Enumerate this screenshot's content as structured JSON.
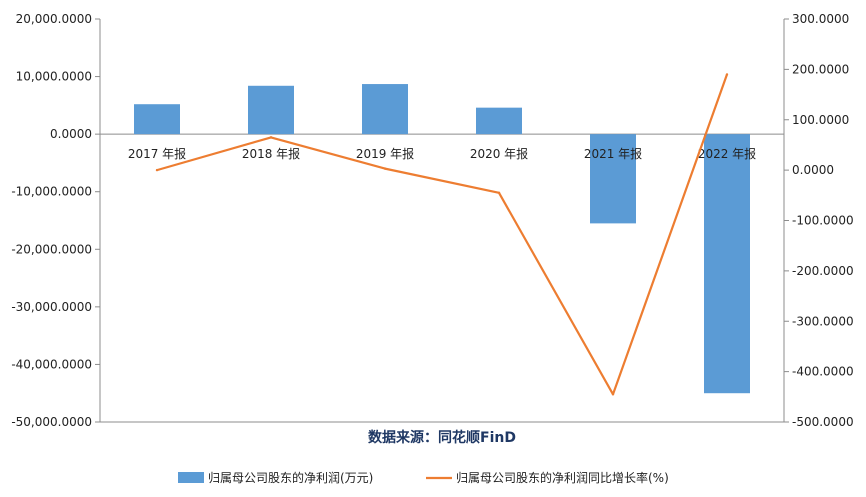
{
  "chart_data": {
    "type": "bar",
    "categories": [
      "2017 年报",
      "2018 年报",
      "2019 年报",
      "2020 年报",
      "2021 年报",
      "2022 年报"
    ],
    "series": [
      {
        "name": "归属母公司股东的净利润(万元)",
        "type": "bar",
        "axis": "left",
        "color": "#5b9bd5",
        "values": [
          5200,
          8400,
          8700,
          4600,
          -15500,
          -45000
        ]
      },
      {
        "name": "归属母公司股东的净利润同比增长率(%)",
        "type": "line",
        "axis": "right",
        "color": "#ed7d31",
        "values": [
          0,
          65,
          3,
          -45,
          -445,
          190
        ]
      }
    ],
    "y_left": {
      "min": -50000,
      "max": 20000,
      "step": 10000,
      "tick_labels": [
        "20,000.0000",
        "10,000.0000",
        "0.0000",
        "-10,000.0000",
        "-20,000.0000",
        "-30,000.0000",
        "-40,000.0000",
        "-50,000.0000"
      ]
    },
    "y_right": {
      "min": -500,
      "max": 300,
      "step": 100,
      "tick_labels": [
        "300.0000",
        "200.0000",
        "100.0000",
        "0.0000",
        "-100.0000",
        "-200.0000",
        "-300.0000",
        "-400.0000",
        "-500.0000"
      ]
    },
    "grid": false,
    "legend_position": "bottom",
    "source_text": "数据来源：同花顺FinD"
  }
}
